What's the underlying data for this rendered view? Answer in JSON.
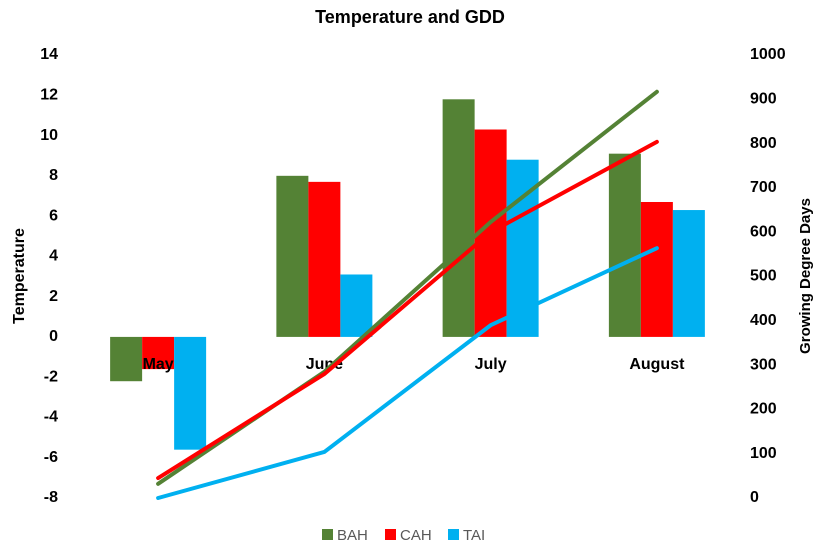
{
  "chart_data": {
    "type": "bar-line",
    "title": "Temperature and GDD",
    "y_label": "Temperature",
    "y2_label": "Growing Degree Days",
    "categories": [
      "May",
      "June",
      "July",
      "August"
    ],
    "series": [
      {
        "name": "BAH",
        "color": "#548235",
        "values": [
          -2.2,
          8.0,
          11.8,
          9.1
        ],
        "y2_values": [
          32,
          285,
          623,
          917
        ]
      },
      {
        "name": "CAH",
        "color": "#ff0000",
        "values": [
          -1.6,
          7.7,
          10.3,
          6.7
        ],
        "y2_values": [
          45,
          280,
          600,
          804
        ]
      },
      {
        "name": "TAI",
        "color": "#00b0f0",
        "values": [
          -5.6,
          3.1,
          8.8,
          6.3
        ],
        "y2_values": [
          0,
          104,
          390,
          564
        ]
      }
    ],
    "ylim": [
      -8,
      14
    ],
    "yticks": [
      -8,
      -6,
      -4,
      -2,
      0,
      2,
      4,
      6,
      8,
      10,
      12,
      14
    ],
    "y2lim": [
      0,
      1000
    ],
    "y2ticks": [
      0,
      100,
      200,
      300,
      400,
      500,
      600,
      700,
      800,
      900,
      1000
    ],
    "legend": "bottom"
  }
}
